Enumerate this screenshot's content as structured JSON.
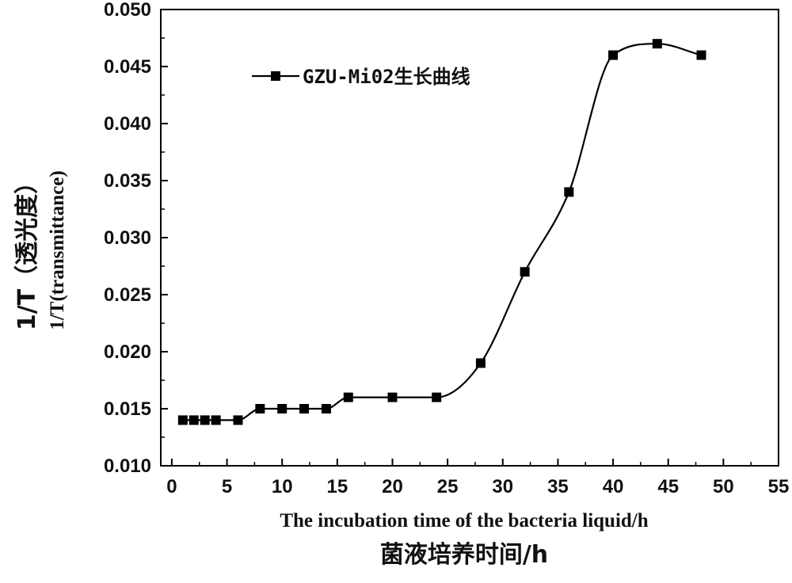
{
  "chart_data": {
    "type": "line",
    "title": "",
    "xlabel": "The incubation time of the bacteria liquid/h",
    "xlabel_secondary": "菌液培养时间/h",
    "ylabel": "1/T(transmittance)",
    "ylabel_secondary": "1/T（透光度）",
    "xlim": [
      -1,
      55
    ],
    "ylim": [
      0.01,
      0.05
    ],
    "x_ticks": [
      "0",
      "5",
      "10",
      "15",
      "20",
      "25",
      "30",
      "35",
      "40",
      "45",
      "50",
      "55"
    ],
    "y_ticks": [
      "0.010",
      "0.015",
      "0.020",
      "0.025",
      "0.030",
      "0.035",
      "0.040",
      "0.045",
      "0.050"
    ],
    "grid": false,
    "legend_position": "top-left",
    "series": [
      {
        "name": "GZU-Mi02生长曲线",
        "marker": "square",
        "smooth_line": true,
        "color": "#000000",
        "x": [
          1,
          2,
          3,
          4,
          6,
          8,
          10,
          12,
          14,
          16,
          20,
          24,
          28,
          32,
          36,
          40,
          44,
          48
        ],
        "y": [
          0.014,
          0.014,
          0.014,
          0.014,
          0.014,
          0.015,
          0.015,
          0.015,
          0.015,
          0.016,
          0.016,
          0.016,
          0.019,
          0.027,
          0.034,
          0.046,
          0.047,
          0.046
        ]
      }
    ]
  }
}
